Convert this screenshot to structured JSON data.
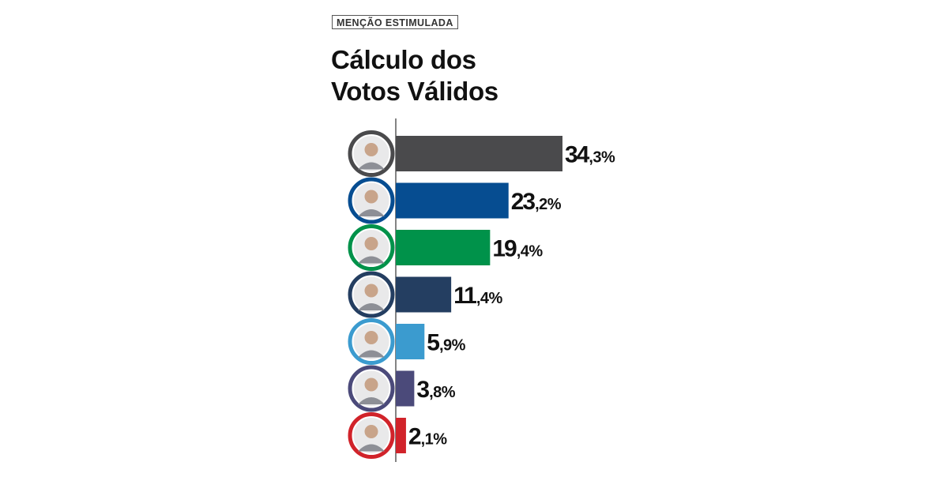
{
  "header": {
    "tag": "MENÇÃO ESTIMULADA",
    "title_line1": "Cálculo dos",
    "title_line2": "Votos Válidos"
  },
  "chart_data": {
    "type": "bar",
    "orientation": "horizontal",
    "categories": [
      "",
      "",
      "",
      "",
      "",
      "",
      ""
    ],
    "values": [
      34.3,
      23.2,
      19.4,
      11.4,
      5.9,
      3.8,
      2.1
    ],
    "value_labels": [
      {
        "main": "34",
        "dec": ",3%"
      },
      {
        "main": "23",
        "dec": ",2%"
      },
      {
        "main": "19",
        "dec": ",4%"
      },
      {
        "main": "11",
        "dec": ",4%"
      },
      {
        "main": "5",
        "dec": ",9%"
      },
      {
        "main": "3",
        "dec": ",8%"
      },
      {
        "main": "2",
        "dec": ",1%"
      }
    ],
    "colors": [
      "#4a4a4c",
      "#064d91",
      "#00924a",
      "#243e61",
      "#3b9bcf",
      "#4b4a7a",
      "#d1232a"
    ],
    "xlim": [
      0,
      34.3
    ],
    "grid": false,
    "legend": "none",
    "title": "",
    "xlabel": "",
    "ylabel": ""
  }
}
